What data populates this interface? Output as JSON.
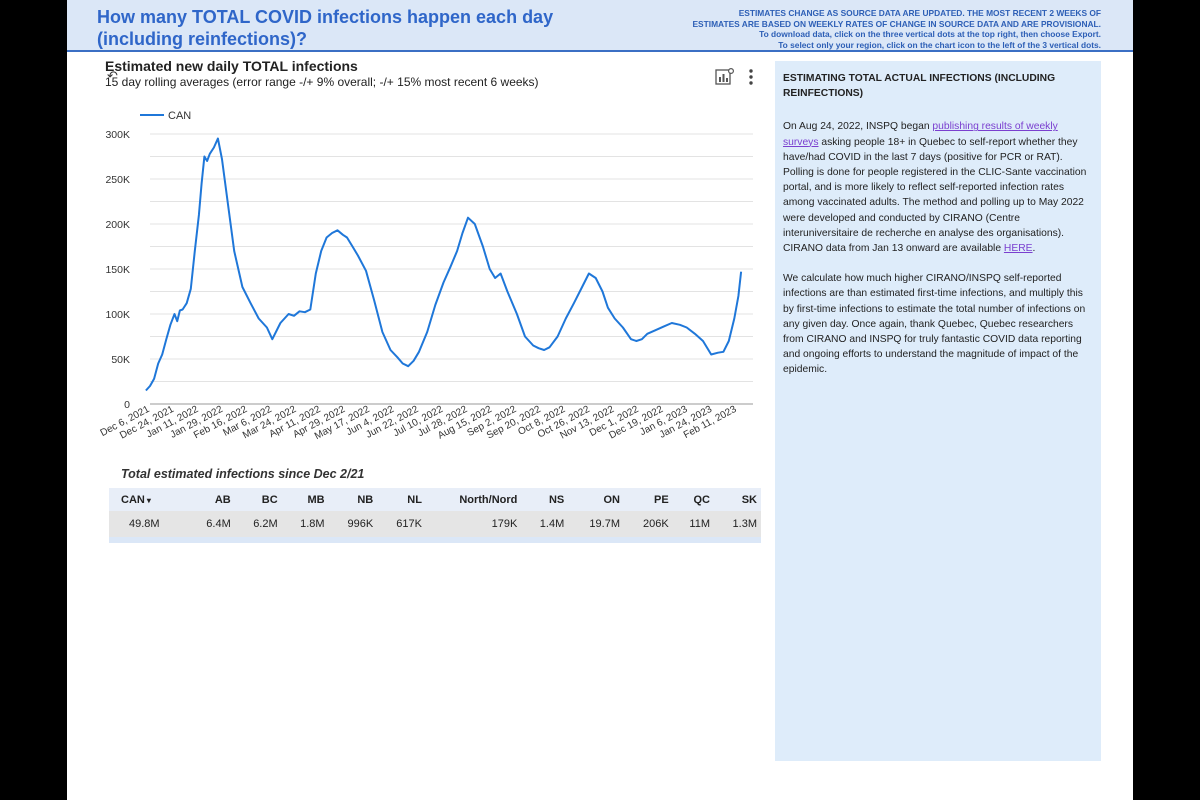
{
  "header": {
    "title": "How many TOTAL COVID infections happen each day (including reinfections)?",
    "notice_line1": "ESTIMATES CHANGE AS SOURCE DATA ARE UPDATED. THE MOST RECENT 2 WEEKS OF",
    "notice_line2": "ESTIMATES ARE BASED ON WEEKLY RATES OF CHANGE IN SOURCE DATA AND ARE PROVISIONAL.",
    "notice_line3": "To download data, click on the three vertical dots at the top right, then choose Export.",
    "notice_line4": "To select only your region, click on the chart icon to the left of the 3 vertical dots."
  },
  "chart_header": {
    "title": "Estimated new daily TOTAL infections",
    "subtitle": "15 day rolling averages (error range -/+ 9% overall; -/+ 15% most recent 6 weeks)"
  },
  "chart_data": {
    "type": "line",
    "title": "Estimated new daily TOTAL infections",
    "subtitle": "15 day rolling averages (error range -/+ 9% overall; -/+ 15% most recent 6 weeks)",
    "legend": "top-left",
    "grid": true,
    "ylim": [
      0,
      300000
    ],
    "y_ticks": [
      "0",
      "50K",
      "100K",
      "150K",
      "200K",
      "250K",
      "300K"
    ],
    "x_ticks": [
      "Dec 6, 2021",
      "Dec 24, 2021",
      "Jan 11, 2022",
      "Jan 29, 2022",
      "Feb 16, 2022",
      "Mar 6, 2022",
      "Mar 24, 2022",
      "Apr 11, 2022",
      "Apr 29, 2022",
      "May 17, 2022",
      "Jun 4, 2022",
      "Jun 22, 2022",
      "Jul 10, 2022",
      "Jul 28, 2022",
      "Aug 15, 2022",
      "Sep 2, 2022",
      "Sep 20, 2022",
      "Oct 8, 2022",
      "Oct 26, 2022",
      "Nov 13, 2022",
      "Dec 1, 2022",
      "Dec 19, 2022",
      "Jan 6, 2023",
      "Jan 24, 2023",
      "Feb 11, 2023"
    ],
    "series": [
      {
        "name": "CAN",
        "color": "#1f77d9",
        "x": [
          "2021-12-03",
          "2021-12-06",
          "2021-12-09",
          "2021-12-12",
          "2021-12-15",
          "2021-12-18",
          "2021-12-21",
          "2021-12-24",
          "2021-12-26",
          "2021-12-28",
          "2021-12-30",
          "2022-01-02",
          "2022-01-05",
          "2022-01-08",
          "2022-01-11",
          "2022-01-13",
          "2022-01-15",
          "2022-01-17",
          "2022-01-19",
          "2022-01-22",
          "2022-01-25",
          "2022-01-28",
          "2022-02-02",
          "2022-02-06",
          "2022-02-12",
          "2022-02-18",
          "2022-02-24",
          "2022-03-02",
          "2022-03-06",
          "2022-03-12",
          "2022-03-18",
          "2022-03-22",
          "2022-03-26",
          "2022-03-30",
          "2022-04-03",
          "2022-04-07",
          "2022-04-11",
          "2022-04-15",
          "2022-04-19",
          "2022-04-23",
          "2022-04-27",
          "2022-04-30",
          "2022-05-04",
          "2022-05-08",
          "2022-05-14",
          "2022-05-20",
          "2022-05-26",
          "2022-06-01",
          "2022-06-06",
          "2022-06-10",
          "2022-06-14",
          "2022-06-18",
          "2022-06-22",
          "2022-06-28",
          "2022-07-04",
          "2022-07-10",
          "2022-07-15",
          "2022-07-20",
          "2022-07-24",
          "2022-07-28",
          "2022-08-02",
          "2022-08-08",
          "2022-08-13",
          "2022-08-17",
          "2022-08-21",
          "2022-08-26",
          "2022-09-02",
          "2022-09-08",
          "2022-09-14",
          "2022-09-18",
          "2022-09-22",
          "2022-09-26",
          "2022-10-02",
          "2022-10-08",
          "2022-10-14",
          "2022-10-20",
          "2022-10-25",
          "2022-10-30",
          "2022-11-04",
          "2022-11-08",
          "2022-11-13",
          "2022-11-19",
          "2022-11-25",
          "2022-11-29",
          "2022-12-03",
          "2022-12-07",
          "2022-12-13",
          "2022-12-19",
          "2022-12-25",
          "2022-12-31",
          "2023-01-05",
          "2023-01-11",
          "2023-01-17",
          "2023-01-23",
          "2023-01-28",
          "2023-02-01",
          "2023-02-05",
          "2023-02-09",
          "2023-02-12",
          "2023-02-14"
        ],
        "values": [
          15000,
          20000,
          28000,
          45000,
          55000,
          72000,
          88000,
          100000,
          92000,
          104000,
          105000,
          112000,
          128000,
          170000,
          210000,
          245000,
          275000,
          270000,
          278000,
          285000,
          295000,
          272000,
          215000,
          170000,
          130000,
          112000,
          95000,
          85000,
          72000,
          90000,
          100000,
          98000,
          103000,
          102000,
          105000,
          145000,
          170000,
          185000,
          190000,
          193000,
          188000,
          185000,
          175000,
          165000,
          148000,
          115000,
          80000,
          60000,
          52000,
          45000,
          42000,
          48000,
          58000,
          80000,
          110000,
          135000,
          152000,
          170000,
          190000,
          207000,
          200000,
          175000,
          150000,
          140000,
          145000,
          125000,
          100000,
          75000,
          65000,
          62000,
          60000,
          63000,
          75000,
          95000,
          112000,
          130000,
          145000,
          140000,
          125000,
          107000,
          95000,
          85000,
          72000,
          70000,
          72000,
          78000,
          82000,
          86000,
          90000,
          88000,
          85000,
          78000,
          70000,
          55000,
          57000,
          58000,
          70000,
          95000,
          120000,
          147000
        ]
      }
    ]
  },
  "table": {
    "caption": "Total estimated infections since Dec 2/21",
    "sort_indicator": "▾",
    "headers": [
      "CAN",
      "AB",
      "BC",
      "MB",
      "NB",
      "NL",
      "North/Nord",
      "NS",
      "ON",
      "PE",
      "QC",
      "SK"
    ],
    "values": [
      "49.8M",
      "6.4M",
      "6.2M",
      "1.8M",
      "996K",
      "617K",
      "179K",
      "1.4M",
      "19.7M",
      "206K",
      "11M",
      "1.3M"
    ]
  },
  "side_panel": {
    "heading": "ESTIMATING TOTAL ACTUAL INFECTIONS (INCLUDING REINFECTIONS)",
    "p1_pre": "On Aug 24, 2022, INSPQ began ",
    "p1_link": "publishing results of weekly surveys",
    "p1_post": " asking people 18+ in Quebec to self-report whether they have/had COVID in the last 7 days (positive for PCR or RAT). Polling is done for people registered in the CLIC-Sante vaccination portal, and is more likely to reflect self-reported infection rates among vaccinated adults. The method and polling up to May 2022 were developed and conducted by CIRANO (Centre interuniversitaire de recherche en analyse des organisations). CIRANO data from Jan 13 onward are available ",
    "p1_link2": "HERE",
    "p1_end": ".",
    "p2": "We calculate how much higher CIRANO/INSPQ self-reported infections are than estimated first-time infections, and multiply this by first-time infections to estimate the total number of infections on any given day. Once again, thank Quebec, Quebec researchers from CIRANO and INSPQ for truly fantastic COVID data reporting and ongoing efforts to understand the magnitude of impact of the epidemic."
  },
  "icons": {
    "chart": "chart-icon",
    "more": "more-vert-icon",
    "undo": "undo-icon"
  }
}
